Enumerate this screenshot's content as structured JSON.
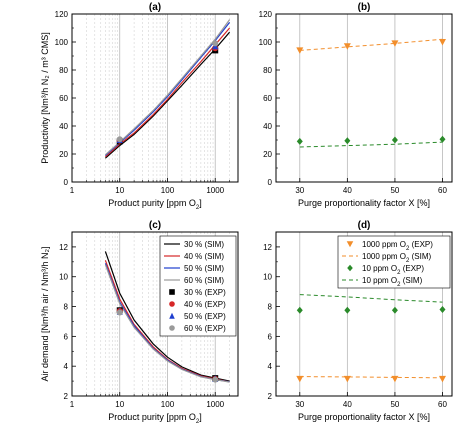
{
  "chart_data": [
    {
      "panel": "a",
      "type": "line",
      "title": "(a)",
      "xlabel_main": "Product purity [ppm O",
      "xlabel_sub": "2",
      "xlabel_end": "]",
      "ylabel": "Productivity [Nm³/h N₂ / m³ CMS]",
      "xscale": "log",
      "xlim": [
        1,
        3000
      ],
      "ylim": [
        0,
        120
      ],
      "xticks": [
        1,
        10,
        100,
        1000
      ],
      "xtick_labels": [
        "1",
        "10",
        "100",
        "1000"
      ],
      "yticks": [
        0,
        20,
        40,
        60,
        80,
        100,
        120
      ],
      "grid": "vertical",
      "series": [
        {
          "kind": "sim",
          "color": "#000000",
          "x": [
            5,
            10,
            20,
            50,
            100,
            200,
            500,
            1000,
            2000
          ],
          "y": [
            17,
            26,
            34,
            47,
            58,
            69,
            84,
            95,
            107
          ]
        },
        {
          "kind": "sim",
          "color": "#d62728",
          "x": [
            5,
            10,
            20,
            50,
            100,
            200,
            500,
            1000,
            2000
          ],
          "y": [
            18,
            27,
            35,
            48,
            59,
            71,
            86,
            98,
            110
          ]
        },
        {
          "kind": "sim",
          "color": "#1f3fcf",
          "x": [
            5,
            10,
            20,
            50,
            100,
            200,
            500,
            1000,
            2000
          ],
          "y": [
            19,
            28,
            37,
            50,
            61,
            73,
            89,
            101,
            114
          ]
        },
        {
          "kind": "sim",
          "color": "#9a9a9a",
          "x": [
            5,
            10,
            20,
            50,
            100,
            200,
            500,
            1000,
            2000
          ],
          "y": [
            19.5,
            28.5,
            38,
            51,
            62,
            74,
            90,
            102,
            116
          ]
        },
        {
          "kind": "exp",
          "marker": "square",
          "color": "#000000",
          "x": [
            10,
            1000
          ],
          "y": [
            29,
            94
          ]
        },
        {
          "kind": "exp",
          "marker": "circle",
          "color": "#d62728",
          "x": [
            10,
            1000
          ],
          "y": [
            29.5,
            95.5
          ]
        },
        {
          "kind": "exp",
          "marker": "triangle",
          "color": "#1f3fcf",
          "x": [
            10,
            1000
          ],
          "y": [
            30,
            97
          ]
        },
        {
          "kind": "exp",
          "marker": "circle",
          "color": "#9a9a9a",
          "x": [
            10,
            1000
          ],
          "y": [
            30.5,
            99
          ]
        }
      ]
    },
    {
      "panel": "b",
      "type": "scatter",
      "title": "(b)",
      "xlabel": "Purge proportionality factor X [%]",
      "xlim": [
        25,
        62
      ],
      "ylim": [
        0,
        120
      ],
      "xticks": [
        30,
        40,
        50,
        60
      ],
      "yticks": [
        0,
        20,
        40,
        60,
        80,
        100,
        120
      ],
      "grid": "vertical",
      "series": [
        {
          "kind": "exp",
          "marker": "triangle-down",
          "color": "#f28e2b",
          "x": [
            30,
            40,
            50,
            60
          ],
          "y": [
            94,
            97,
            99,
            100
          ]
        },
        {
          "kind": "sim",
          "dashed": true,
          "color": "#f28e2b",
          "x": [
            30,
            40,
            50,
            60
          ],
          "y": [
            94,
            96.5,
            99,
            102
          ]
        },
        {
          "kind": "exp",
          "marker": "diamond",
          "color": "#2a8a2a",
          "x": [
            30,
            40,
            50,
            60
          ],
          "y": [
            29,
            29.5,
            30,
            30.5
          ]
        },
        {
          "kind": "sim",
          "dashed": true,
          "color": "#2a8a2a",
          "x": [
            30,
            40,
            50,
            60
          ],
          "y": [
            25,
            26,
            27,
            28.5
          ]
        }
      ]
    },
    {
      "panel": "c",
      "type": "line",
      "title": "(c)",
      "xlabel_main": "Product purity [ppm O",
      "xlabel_sub": "2",
      "xlabel_end": "]",
      "ylabel": "Air demand [Nm³/h air / Nm³/h N₂]",
      "xscale": "log",
      "xlim": [
        1,
        3000
      ],
      "ylim": [
        2,
        13
      ],
      "xticks": [
        1,
        10,
        100,
        1000
      ],
      "xtick_labels": [
        "1",
        "10",
        "100",
        "1000"
      ],
      "yticks": [
        2,
        4,
        6,
        8,
        10,
        12
      ],
      "grid": "vertical",
      "legend": {
        "placement": "top-right",
        "entries": [
          {
            "label": "30 % (SIM)",
            "kind": "line",
            "color": "#000000"
          },
          {
            "label": "40 % (SIM)",
            "kind": "line",
            "color": "#d62728"
          },
          {
            "label": "50 % (SIM)",
            "kind": "line",
            "color": "#1f3fcf"
          },
          {
            "label": "60 % (SIM)",
            "kind": "line",
            "color": "#9a9a9a"
          },
          {
            "label": "30 % (EXP)",
            "kind": "marker",
            "marker": "square",
            "color": "#000000"
          },
          {
            "label": "40 % (EXP)",
            "kind": "marker",
            "marker": "circle",
            "color": "#d62728"
          },
          {
            "label": "50 % (EXP)",
            "kind": "marker",
            "marker": "triangle",
            "color": "#1f3fcf"
          },
          {
            "label": "60 % (EXP)",
            "kind": "marker",
            "marker": "circle",
            "color": "#9a9a9a"
          }
        ]
      },
      "series": [
        {
          "kind": "sim",
          "color": "#000000",
          "x": [
            5,
            10,
            20,
            50,
            100,
            200,
            500,
            1000,
            2000
          ],
          "y": [
            11.7,
            8.9,
            7.1,
            5.5,
            4.6,
            3.95,
            3.4,
            3.2,
            3.0
          ]
        },
        {
          "kind": "sim",
          "color": "#d62728",
          "x": [
            5,
            10,
            20,
            50,
            100,
            200,
            500,
            1000,
            2000
          ],
          "y": [
            11.1,
            8.5,
            6.8,
            5.3,
            4.45,
            3.85,
            3.35,
            3.15,
            2.95
          ]
        },
        {
          "kind": "sim",
          "color": "#1f3fcf",
          "x": [
            5,
            10,
            20,
            50,
            100,
            200,
            500,
            1000,
            2000
          ],
          "y": [
            10.9,
            8.3,
            6.7,
            5.2,
            4.4,
            3.8,
            3.3,
            3.1,
            2.95
          ]
        },
        {
          "kind": "sim",
          "color": "#9a9a9a",
          "x": [
            5,
            10,
            20,
            50,
            100,
            200,
            500,
            1000,
            2000
          ],
          "y": [
            10.8,
            8.2,
            6.6,
            5.15,
            4.35,
            3.78,
            3.28,
            3.1,
            2.93
          ]
        },
        {
          "kind": "exp",
          "marker": "square",
          "color": "#000000",
          "x": [
            10,
            1000
          ],
          "y": [
            7.75,
            3.2
          ]
        },
        {
          "kind": "exp",
          "marker": "circle",
          "color": "#d62728",
          "x": [
            10,
            1000
          ],
          "y": [
            7.7,
            3.15
          ]
        },
        {
          "kind": "exp",
          "marker": "triangle",
          "color": "#1f3fcf",
          "x": [
            10,
            1000
          ],
          "y": [
            7.65,
            3.15
          ]
        },
        {
          "kind": "exp",
          "marker": "circle",
          "color": "#9a9a9a",
          "x": [
            10,
            1000
          ],
          "y": [
            7.6,
            3.1
          ]
        }
      ]
    },
    {
      "panel": "d",
      "type": "scatter",
      "title": "(d)",
      "xlabel": "Purge proportionality factor X [%]",
      "xlim": [
        25,
        62
      ],
      "ylim": [
        2,
        13
      ],
      "xticks": [
        30,
        40,
        50,
        60
      ],
      "yticks": [
        2,
        4,
        6,
        8,
        10,
        12
      ],
      "grid": "vertical",
      "legend": {
        "placement": "top-right",
        "entries": [
          {
            "label_main": "1000 ppm O",
            "label_sub": "2",
            "label_end": " (EXP)",
            "kind": "marker",
            "marker": "triangle-down",
            "color": "#f28e2b"
          },
          {
            "label_main": "1000 ppm O",
            "label_sub": "2",
            "label_end": " (SIM)",
            "kind": "dashed",
            "color": "#f28e2b"
          },
          {
            "label_main": "10 ppm O",
            "label_sub": "2",
            "label_end": " (EXP)",
            "kind": "marker",
            "marker": "diamond",
            "color": "#2a8a2a"
          },
          {
            "label_main": "10 ppm O",
            "label_sub": "2",
            "label_end": " (SIM)",
            "kind": "dashed",
            "color": "#2a8a2a"
          }
        ]
      },
      "series": [
        {
          "kind": "exp",
          "marker": "triangle-down",
          "color": "#f28e2b",
          "x": [
            30,
            40,
            50,
            60
          ],
          "y": [
            3.15,
            3.15,
            3.15,
            3.15
          ]
        },
        {
          "kind": "sim",
          "dashed": true,
          "color": "#f28e2b",
          "x": [
            30,
            40,
            50,
            60
          ],
          "y": [
            3.3,
            3.28,
            3.25,
            3.22
          ]
        },
        {
          "kind": "exp",
          "marker": "diamond",
          "color": "#2a8a2a",
          "x": [
            30,
            40,
            50,
            60
          ],
          "y": [
            7.75,
            7.75,
            7.75,
            7.8
          ]
        },
        {
          "kind": "sim",
          "dashed": true,
          "color": "#2a8a2a",
          "x": [
            30,
            40,
            50,
            60
          ],
          "y": [
            8.8,
            8.65,
            8.45,
            8.3
          ]
        }
      ]
    }
  ]
}
